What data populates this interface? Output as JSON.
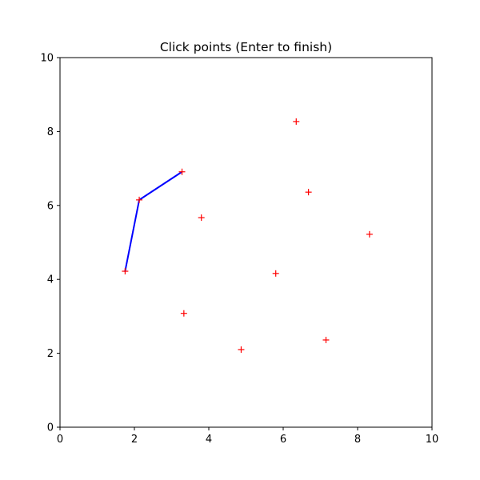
{
  "chart_data": {
    "type": "scatter",
    "title": "Click points (Enter to finish)",
    "xlabel": "",
    "ylabel": "",
    "xlim": [
      0,
      10
    ],
    "ylim": [
      0,
      10
    ],
    "x_ticks": [
      "0",
      "2",
      "4",
      "6",
      "8",
      "10"
    ],
    "y_ticks": [
      "0",
      "2",
      "4",
      "6",
      "8",
      "10"
    ],
    "grid": false,
    "points": [
      {
        "x": 1.75,
        "y": 4.22
      },
      {
        "x": 2.13,
        "y": 6.15
      },
      {
        "x": 3.28,
        "y": 6.91
      },
      {
        "x": 3.8,
        "y": 5.67
      },
      {
        "x": 3.33,
        "y": 3.08
      },
      {
        "x": 4.87,
        "y": 2.1
      },
      {
        "x": 5.8,
        "y": 4.16
      },
      {
        "x": 6.35,
        "y": 8.27
      },
      {
        "x": 6.68,
        "y": 6.36
      },
      {
        "x": 7.15,
        "y": 2.36
      },
      {
        "x": 8.32,
        "y": 5.22
      }
    ],
    "path": [
      {
        "x": 1.75,
        "y": 4.22
      },
      {
        "x": 2.13,
        "y": 6.15
      },
      {
        "x": 3.28,
        "y": 6.91
      }
    ],
    "marker": "+",
    "point_color": "#ff0000",
    "line_color": "#0000ff"
  }
}
